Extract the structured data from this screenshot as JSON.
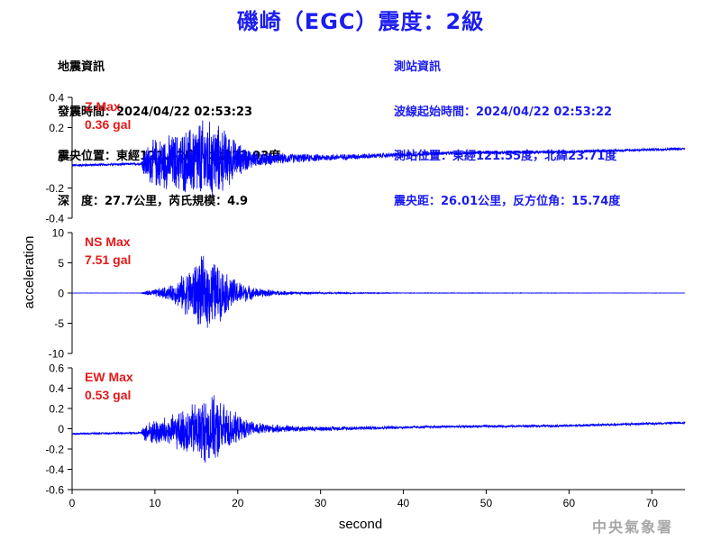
{
  "page": {
    "title": "磯崎（EGC）震度：2級",
    "watermark": "中央氣象署"
  },
  "earthquake_info": {
    "heading": "地震資訊",
    "origin_time": "發震時間：2024/04/22 02:53:23",
    "epicenter": "震央位置：東經121.62度，北緯23.93度",
    "depth_magnitude": "深　度：27.7公里，芮氏規模：4.9"
  },
  "station_info": {
    "heading": "測站資訊",
    "wave_start": "波線起始時間：2024/04/22 02:53:22",
    "station_location": "測站位置：東經121.55度，北緯23.71度",
    "distance_azimuth": "震央距：26.01公里，反方位角：15.74度"
  },
  "colors": {
    "trace": "#0000ff",
    "max_label": "#e31a1a",
    "axis": "#000000"
  },
  "chart_data": {
    "type": "line",
    "xlabel": "second",
    "ylabel": "acceleration",
    "xlim": [
      0,
      74
    ],
    "xticks": [
      "0",
      "10",
      "20",
      "30",
      "40",
      "50",
      "60",
      "70"
    ],
    "xtick_values": [
      0,
      10,
      20,
      30,
      40,
      50,
      60,
      70
    ],
    "panels": [
      {
        "name": "Z",
        "max_label": "Z Max",
        "max_value": "0.36 gal",
        "ylim": [
          -0.4,
          0.4
        ],
        "yticks": [
          "0.4",
          "0.2",
          "0",
          "-0.2",
          "-0.4"
        ],
        "ytick_values": [
          0.4,
          0.2,
          0,
          -0.2,
          -0.4
        ],
        "baseline": [
          [
            0,
            -0.05
          ],
          [
            8.5,
            -0.04
          ],
          [
            20,
            -0.01
          ],
          [
            30,
            0.0
          ],
          [
            45,
            0.03
          ],
          [
            60,
            0.04
          ],
          [
            74,
            0.06
          ]
        ],
        "envelope": [
          [
            0,
            0.01
          ],
          [
            8.3,
            0.01
          ],
          [
            8.8,
            0.12
          ],
          [
            10,
            0.18
          ],
          [
            12,
            0.2
          ],
          [
            14,
            0.24
          ],
          [
            15.5,
            0.3
          ],
          [
            17,
            0.28
          ],
          [
            18.5,
            0.22
          ],
          [
            20,
            0.12
          ],
          [
            22,
            0.06
          ],
          [
            25,
            0.04
          ],
          [
            30,
            0.025
          ],
          [
            40,
            0.015
          ],
          [
            50,
            0.012
          ],
          [
            74,
            0.01
          ]
        ]
      },
      {
        "name": "NS",
        "max_label": "NS Max",
        "max_value": "7.51 gal",
        "ylim": [
          -10,
          10
        ],
        "yticks": [
          "10",
          "5",
          "0",
          "-5",
          "-10"
        ],
        "ytick_values": [
          10,
          5,
          0,
          -5,
          -10
        ],
        "baseline": [
          [
            0,
            0
          ],
          [
            74,
            0
          ]
        ],
        "envelope": [
          [
            0,
            0.02
          ],
          [
            8.3,
            0.02
          ],
          [
            8.8,
            0.4
          ],
          [
            10,
            0.7
          ],
          [
            12,
            1.4
          ],
          [
            14,
            4.2
          ],
          [
            15.5,
            6.5
          ],
          [
            17,
            6.2
          ],
          [
            18.5,
            3.8
          ],
          [
            20,
            2.2
          ],
          [
            22,
            1.0
          ],
          [
            25,
            0.4
          ],
          [
            30,
            0.15
          ],
          [
            40,
            0.05
          ],
          [
            74,
            0.02
          ]
        ]
      },
      {
        "name": "EW",
        "max_label": "EW Max",
        "max_value": "0.53 gal",
        "ylim": [
          -0.6,
          0.6
        ],
        "yticks": [
          "0.6",
          "0.4",
          "0.2",
          "0",
          "-0.2",
          "-0.4",
          "-0.6"
        ],
        "ytick_values": [
          0.6,
          0.4,
          0.2,
          0,
          -0.2,
          -0.4,
          -0.6
        ],
        "baseline": [
          [
            0,
            -0.05
          ],
          [
            8.5,
            -0.04
          ],
          [
            20,
            0.0
          ],
          [
            30,
            0.0
          ],
          [
            45,
            0.02
          ],
          [
            60,
            0.03
          ],
          [
            74,
            0.06
          ]
        ],
        "envelope": [
          [
            0,
            0.01
          ],
          [
            8.3,
            0.01
          ],
          [
            8.8,
            0.1
          ],
          [
            10,
            0.14
          ],
          [
            12,
            0.17
          ],
          [
            14,
            0.26
          ],
          [
            16,
            0.36
          ],
          [
            17.5,
            0.34
          ],
          [
            19,
            0.22
          ],
          [
            20.5,
            0.12
          ],
          [
            22,
            0.07
          ],
          [
            25,
            0.04
          ],
          [
            30,
            0.025
          ],
          [
            40,
            0.015
          ],
          [
            74,
            0.012
          ]
        ]
      }
    ]
  }
}
